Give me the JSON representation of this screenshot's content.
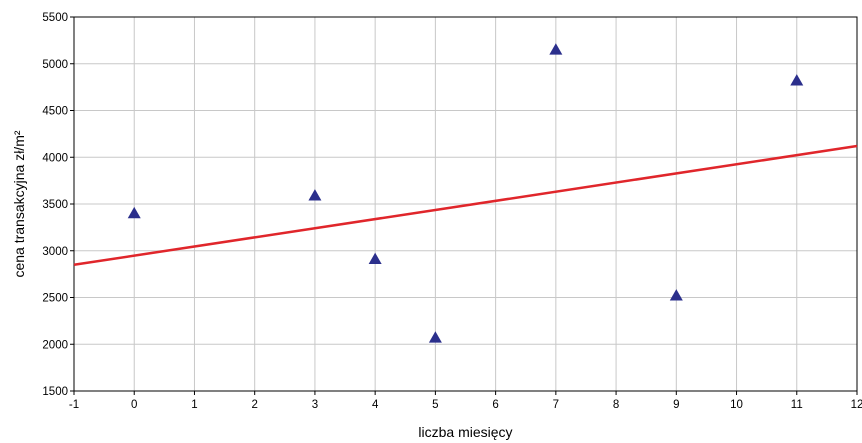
{
  "chart_data": {
    "type": "scatter",
    "xlabel": "liczba miesięcy",
    "ylabel": "cena transakcyjna zł/m²",
    "xlim": [
      -1,
      12
    ],
    "ylim": [
      1500,
      5500
    ],
    "xticks": [
      -1,
      0,
      1,
      2,
      3,
      4,
      5,
      6,
      7,
      8,
      9,
      10,
      11,
      12
    ],
    "yticks": [
      1500,
      2000,
      2500,
      3000,
      3500,
      4000,
      4500,
      5000,
      5500
    ],
    "grid": true,
    "points": [
      {
        "x": 0,
        "y": 3400
      },
      {
        "x": 3,
        "y": 3590
      },
      {
        "x": 4,
        "y": 2910
      },
      {
        "x": 5,
        "y": 2070
      },
      {
        "x": 7,
        "y": 5150
      },
      {
        "x": 9,
        "y": 2520
      },
      {
        "x": 11,
        "y": 4820
      }
    ],
    "trend_line": {
      "x": [
        -1,
        12
      ],
      "y": [
        2850,
        4120
      ]
    },
    "colors": {
      "points": "#2b2f8c",
      "trend": "#e0262b",
      "grid": "#c8c8c8",
      "axis": "#000000"
    }
  }
}
